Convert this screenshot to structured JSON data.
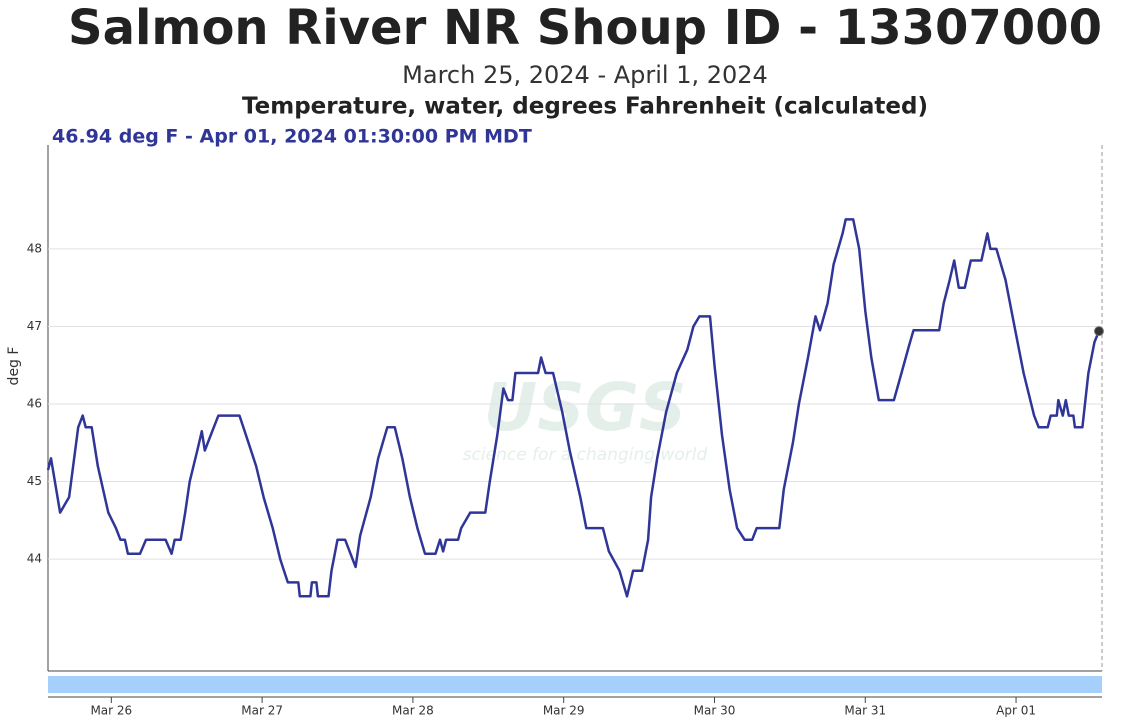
{
  "chart_data": {
    "type": "line",
    "title": "Salmon River NR Shoup ID - 13307000",
    "subtitle": "March 25, 2024 - April 1, 2024",
    "parameter": "Temperature, water, degrees Fahrenheit (calculated)",
    "readout": "46.94 deg F - Apr 01, 2024 01:30:00 PM MDT",
    "y_label": "deg F",
    "watermark": {
      "logo": "USGS",
      "tagline": "science for a changing world"
    },
    "color": "#303598",
    "grid": true,
    "xlim": [
      25.58,
      32.57
    ],
    "ylim": [
      42.57,
      49.34
    ],
    "xticks": [
      {
        "value": 26,
        "label": "Mar 26"
      },
      {
        "value": 27,
        "label": "Mar 27"
      },
      {
        "value": 28,
        "label": "Mar 28"
      },
      {
        "value": 29,
        "label": "Mar 29"
      },
      {
        "value": 30,
        "label": "Mar 30"
      },
      {
        "value": 31,
        "label": "Mar 31"
      },
      {
        "value": 32,
        "label": "Apr 01"
      }
    ],
    "yticks": [
      44,
      45,
      46,
      47,
      48
    ],
    "x": [
      25.58,
      25.6,
      25.66,
      25.72,
      25.78,
      25.81,
      25.83,
      25.87,
      25.91,
      25.98,
      26.03,
      26.06,
      26.09,
      26.11,
      26.19,
      26.23,
      26.36,
      26.4,
      26.42,
      26.46,
      26.49,
      26.52,
      26.57,
      26.6,
      26.62,
      26.66,
      26.71,
      26.85,
      26.91,
      26.96,
      27.01,
      27.07,
      27.12,
      27.17,
      27.24,
      27.25,
      27.32,
      27.33,
      27.36,
      27.37,
      27.44,
      27.46,
      27.5,
      27.55,
      27.62,
      27.65,
      27.72,
      27.77,
      27.83,
      27.88,
      27.93,
      27.98,
      28.03,
      28.08,
      28.15,
      28.18,
      28.2,
      28.22,
      28.3,
      28.32,
      28.38,
      28.48,
      28.51,
      28.56,
      28.6,
      28.63,
      28.66,
      28.68,
      28.83,
      28.85,
      28.88,
      28.93,
      28.99,
      29.04,
      29.11,
      29.15,
      29.26,
      29.3,
      29.37,
      29.42,
      29.46,
      29.52,
      29.56,
      29.58,
      29.62,
      29.68,
      29.75,
      29.82,
      29.86,
      29.9,
      29.97,
      30.0,
      30.05,
      30.1,
      30.15,
      30.2,
      30.25,
      30.28,
      30.43,
      30.46,
      30.52,
      30.56,
      30.62,
      30.67,
      30.7,
      30.75,
      30.79,
      30.85,
      30.87,
      30.92,
      30.96,
      31.0,
      31.04,
      31.09,
      31.19,
      31.24,
      31.29,
      31.32,
      31.49,
      31.52,
      31.56,
      31.59,
      31.62,
      31.66,
      31.7,
      31.77,
      31.81,
      31.83,
      31.87,
      31.93,
      31.99,
      32.05,
      32.12,
      32.15,
      32.21,
      32.23,
      32.27,
      32.28,
      32.31,
      32.33,
      32.35,
      32.38,
      32.39,
      32.44,
      32.46,
      32.48,
      32.52,
      32.55
    ],
    "values": [
      45.15,
      45.3,
      44.6,
      44.8,
      45.7,
      45.85,
      45.7,
      45.7,
      45.2,
      44.6,
      44.4,
      44.25,
      44.25,
      44.07,
      44.07,
      44.25,
      44.25,
      44.07,
      44.25,
      44.25,
      44.6,
      45.0,
      45.4,
      45.65,
      45.4,
      45.6,
      45.85,
      45.85,
      45.5,
      45.2,
      44.8,
      44.4,
      44.0,
      43.7,
      43.7,
      43.52,
      43.52,
      43.7,
      43.7,
      43.52,
      43.52,
      43.85,
      44.25,
      44.25,
      43.9,
      44.3,
      44.8,
      45.3,
      45.7,
      45.7,
      45.3,
      44.8,
      44.4,
      44.07,
      44.07,
      44.25,
      44.1,
      44.25,
      44.25,
      44.4,
      44.6,
      44.6,
      45.0,
      45.6,
      46.2,
      46.05,
      46.05,
      46.4,
      46.4,
      46.6,
      46.4,
      46.4,
      45.9,
      45.4,
      44.8,
      44.4,
      44.4,
      44.1,
      43.85,
      43.52,
      43.85,
      43.85,
      44.25,
      44.8,
      45.3,
      45.9,
      46.4,
      46.7,
      47.0,
      47.13,
      47.13,
      46.5,
      45.6,
      44.9,
      44.4,
      44.25,
      44.25,
      44.4,
      44.4,
      44.9,
      45.5,
      46.0,
      46.6,
      47.13,
      46.95,
      47.3,
      47.8,
      48.2,
      48.38,
      48.38,
      48.0,
      47.2,
      46.6,
      46.05,
      46.05,
      46.4,
      46.75,
      46.95,
      46.95,
      47.3,
      47.6,
      47.85,
      47.5,
      47.5,
      47.85,
      47.85,
      48.2,
      48.0,
      48.0,
      47.6,
      47.0,
      46.4,
      45.85,
      45.7,
      45.7,
      45.85,
      45.85,
      46.05,
      45.85,
      46.05,
      45.85,
      45.85,
      45.7,
      45.7,
      46.05,
      46.4,
      46.8,
      46.94
    ]
  }
}
